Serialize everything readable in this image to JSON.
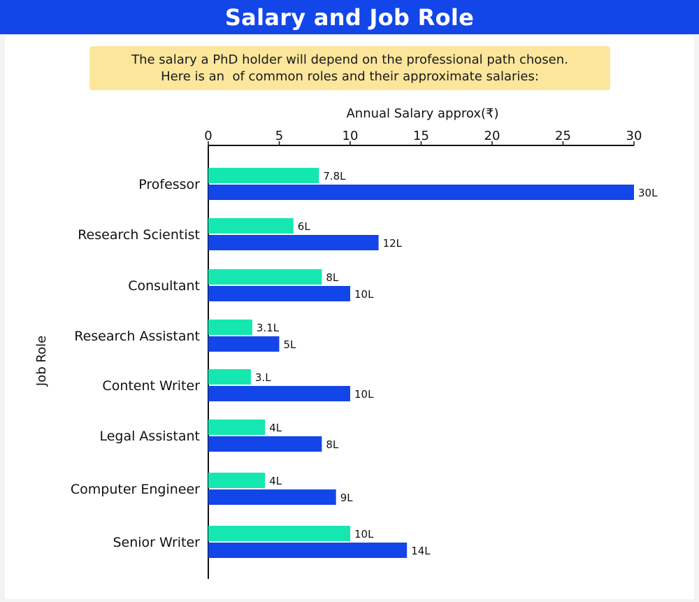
{
  "title": "Salary and Job Role",
  "note": {
    "line1": "The salary a PhD holder will depend on the professional path chosen.",
    "line2": "Here is an  of common roles and their approximate salaries:"
  },
  "colors": {
    "header": "#1346e8",
    "note_background": "#fbe69c",
    "series_green": "#14e8b0",
    "series_blue": "#1346e8"
  },
  "chart_data": {
    "type": "bar",
    "orientation": "horizontal",
    "xlabel": "Annual Salary approx(₹)",
    "ylabel": "Job Role",
    "xlim": [
      0,
      30
    ],
    "xticks": [
      0,
      5,
      10,
      15,
      20,
      25,
      30
    ],
    "x_axis_position": "top",
    "grid": false,
    "legend": "none",
    "categories": [
      "Professor",
      "Research Scientist",
      "Consultant",
      "Research Assistant",
      "Content Writer",
      "Legal Assistant",
      "Computer Engineer",
      "Senior Writer"
    ],
    "series": [
      {
        "color": "#14e8b0",
        "values": [
          7.8,
          6,
          8,
          3.1,
          3,
          4,
          4,
          10
        ],
        "labels": [
          "7.8L",
          "6L",
          "8L",
          "3.1L",
          "3.L",
          "4L",
          "4L",
          "10L"
        ]
      },
      {
        "color": "#1346e8",
        "values": [
          30,
          12,
          10,
          5,
          10,
          8,
          9,
          14
        ],
        "labels": [
          "30L",
          "12L",
          "10L",
          "5L",
          "10L",
          "8L",
          "9L",
          "14L"
        ]
      }
    ]
  }
}
